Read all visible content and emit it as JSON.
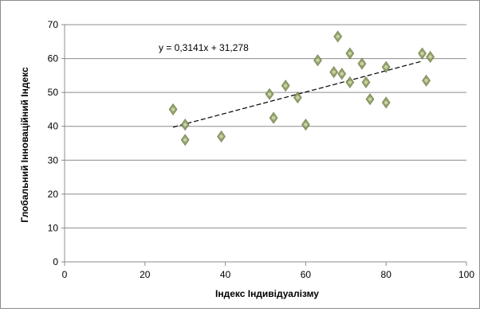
{
  "chart_data": {
    "type": "scatter",
    "title": "",
    "xlabel": "Індекс Індивідуалізму",
    "ylabel": "Глобальний Інноваційний Індекс",
    "xlim": [
      0,
      100
    ],
    "ylim": [
      0,
      70
    ],
    "x_ticks": [
      "0",
      "20",
      "40",
      "60",
      "80",
      "100"
    ],
    "y_ticks": [
      "0",
      "10",
      "20",
      "30",
      "40",
      "50",
      "60",
      "70"
    ],
    "grid": "horizontal",
    "legend": "none",
    "marker_color": "#8a9a5b",
    "trendline": {
      "equation": "y = 0,3141x + 31,278",
      "slope": 0.3141,
      "intercept": 31.278,
      "x_range": [
        27,
        89
      ],
      "style": "dashed"
    },
    "points": [
      {
        "x": 27,
        "y": 45
      },
      {
        "x": 30,
        "y": 40.5
      },
      {
        "x": 30,
        "y": 36
      },
      {
        "x": 39,
        "y": 37
      },
      {
        "x": 51,
        "y": 49.5
      },
      {
        "x": 52,
        "y": 42.5
      },
      {
        "x": 55,
        "y": 52
      },
      {
        "x": 58,
        "y": 48.5
      },
      {
        "x": 60,
        "y": 40.5
      },
      {
        "x": 63,
        "y": 59.5
      },
      {
        "x": 67,
        "y": 56
      },
      {
        "x": 68,
        "y": 66.5
      },
      {
        "x": 69,
        "y": 55.5
      },
      {
        "x": 71,
        "y": 61.5
      },
      {
        "x": 71,
        "y": 53
      },
      {
        "x": 74,
        "y": 58.5
      },
      {
        "x": 75,
        "y": 53
      },
      {
        "x": 76,
        "y": 48
      },
      {
        "x": 80,
        "y": 57.5
      },
      {
        "x": 80,
        "y": 47
      },
      {
        "x": 89,
        "y": 61.5
      },
      {
        "x": 90,
        "y": 53.5
      },
      {
        "x": 91,
        "y": 60.5
      }
    ]
  }
}
